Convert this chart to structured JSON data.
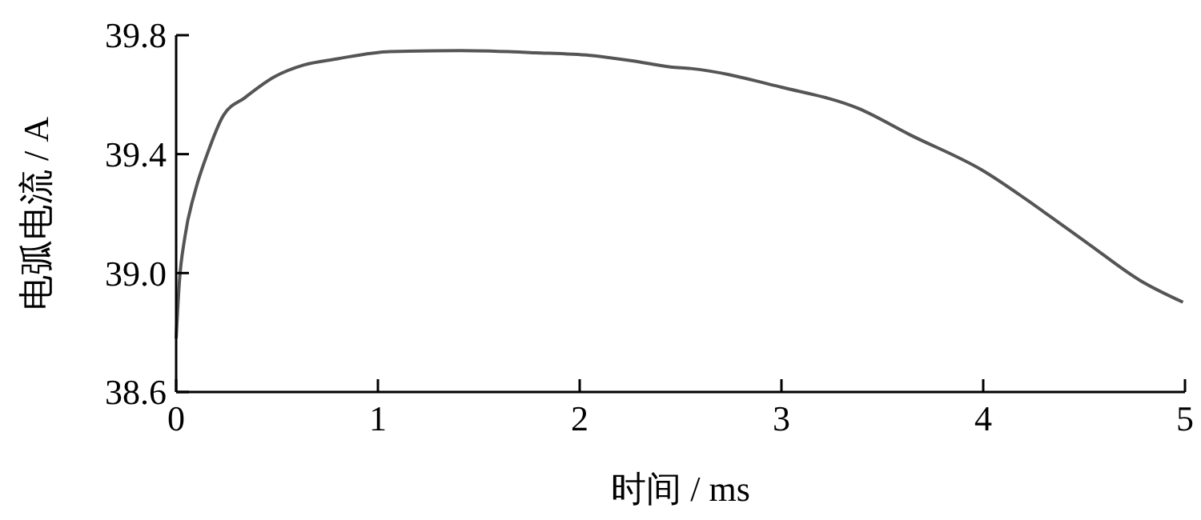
{
  "chart_data": {
    "type": "line",
    "xlabel": "时间 / ms",
    "ylabel": "电弧电流 / A",
    "xlim": [
      0,
      5
    ],
    "ylim": [
      38.6,
      39.8
    ],
    "xticks": [
      0,
      1,
      2,
      3,
      4,
      5
    ],
    "yticks": [
      {
        "value": 38.6,
        "label": "38.6"
      },
      {
        "value": 39.0,
        "label": "39.0"
      },
      {
        "value": 39.4,
        "label": "39.4"
      },
      {
        "value": 39.8,
        "label": "39.8"
      }
    ],
    "grid": false,
    "marker": "none",
    "line_style": "solid",
    "series": [
      {
        "color": "#555555",
        "x": [
          0,
          0.016,
          0.043,
          0.096,
          0.154,
          0.234,
          0.341,
          0.487,
          0.634,
          0.794,
          1.06,
          1.41,
          1.78,
          2.05,
          2.26,
          2.45,
          2.55,
          3.0,
          3.38,
          3.64,
          3.99,
          4.3,
          4.52,
          4.78,
          4.99
        ],
        "values": [
          38.78,
          38.97,
          39.12,
          39.28,
          39.4,
          39.53,
          39.59,
          39.66,
          39.7,
          39.72,
          39.745,
          39.748,
          39.741,
          39.732,
          39.714,
          39.693,
          39.688,
          39.625,
          39.554,
          39.464,
          39.348,
          39.206,
          39.099,
          38.974,
          38.902
        ]
      }
    ]
  }
}
